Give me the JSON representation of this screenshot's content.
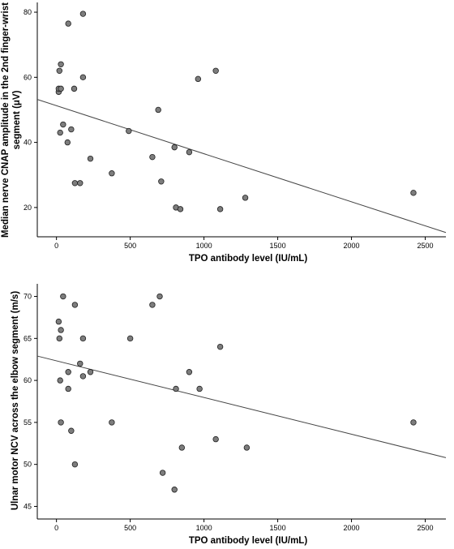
{
  "chart_data": [
    {
      "type": "scatter",
      "xlabel": "TPO antibody level  (IU/mL)",
      "ylabel": "Median nerve CNAP amplitude in the 2nd finger-wrist segment (μV)",
      "ylabel_lines": [
        "Median nerve CNAP amplitude in the 2nd finger-wrist",
        "segment (μV)"
      ],
      "xlim": [
        -130,
        2640
      ],
      "ylim": [
        11,
        83
      ],
      "xticks": [
        0,
        500,
        1000,
        1500,
        2000,
        2500
      ],
      "yticks": [
        20,
        40,
        60,
        80
      ],
      "points": [
        [
          15,
          55.5
        ],
        [
          15,
          56.5
        ],
        [
          20,
          62
        ],
        [
          25,
          43
        ],
        [
          30,
          64
        ],
        [
          30,
          56.5
        ],
        [
          45,
          45.5
        ],
        [
          75,
          40
        ],
        [
          80,
          76.5
        ],
        [
          100,
          44
        ],
        [
          120,
          56.5
        ],
        [
          125,
          27.5
        ],
        [
          160,
          27.5
        ],
        [
          180,
          60
        ],
        [
          180,
          79.5
        ],
        [
          230,
          35
        ],
        [
          375,
          30.5
        ],
        [
          490,
          43.5
        ],
        [
          650,
          35.5
        ],
        [
          690,
          50
        ],
        [
          710,
          28
        ],
        [
          800,
          38.5
        ],
        [
          810,
          20
        ],
        [
          840,
          19.5
        ],
        [
          900,
          37
        ],
        [
          960,
          59.5
        ],
        [
          1080,
          62
        ],
        [
          1110,
          19.5
        ],
        [
          1280,
          23
        ],
        [
          2420,
          24.5
        ]
      ],
      "fit_line": {
        "x": [
          -130,
          2640
        ],
        "y": [
          53.2,
          12.3
        ]
      }
    },
    {
      "type": "scatter",
      "xlabel": "TPO antibody level (IU/mL)",
      "ylabel": "Ulnar motor NCV across the elbow segment (m/s)",
      "xlim": [
        -130,
        2640
      ],
      "ylim": [
        43.5,
        71.5
      ],
      "xticks": [
        0,
        500,
        1000,
        1500,
        2000,
        2500
      ],
      "yticks": [
        45,
        50,
        55,
        60,
        65,
        70
      ],
      "points": [
        [
          15,
          67
        ],
        [
          20,
          65
        ],
        [
          25,
          60
        ],
        [
          30,
          66
        ],
        [
          30,
          55
        ],
        [
          45,
          70
        ],
        [
          80,
          61
        ],
        [
          80,
          59
        ],
        [
          100,
          54
        ],
        [
          125,
          50
        ],
        [
          125,
          69
        ],
        [
          160,
          62
        ],
        [
          180,
          60.5
        ],
        [
          180,
          65
        ],
        [
          230,
          61
        ],
        [
          375,
          55
        ],
        [
          500,
          65
        ],
        [
          650,
          69
        ],
        [
          700,
          70
        ],
        [
          720,
          49
        ],
        [
          800,
          47
        ],
        [
          810,
          59
        ],
        [
          850,
          52
        ],
        [
          900,
          61
        ],
        [
          970,
          59
        ],
        [
          1080,
          53
        ],
        [
          1110,
          64
        ],
        [
          1290,
          52
        ],
        [
          2420,
          55
        ]
      ],
      "fit_line": {
        "x": [
          -130,
          2640
        ],
        "y": [
          62.9,
          50.8
        ]
      }
    }
  ]
}
